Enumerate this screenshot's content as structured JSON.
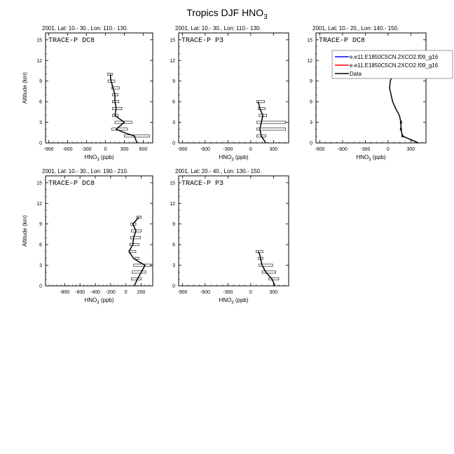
{
  "page": {
    "title_main": "Tropics DJF HNO",
    "title_sub": "3"
  },
  "legend": {
    "entries": [
      {
        "label": "e.e11.E1850C5CN.2XCO2.f09_g16",
        "color": "#0000ff"
      },
      {
        "label": "e.e11.E1850C5CN.2XCO2.f09_g16",
        "color": "#ff0000"
      },
      {
        "label": "Data",
        "color": "#000000"
      }
    ]
  },
  "chart_data": [
    {
      "type": "line",
      "header": "2001, Lat: 10.- 30., Lon: 110.- 130.",
      "label": "TRACE-P DC8",
      "xlabel": "HNO",
      "xlabel_sub": "3",
      "xlabel_unit": " (ppb)",
      "ylabel": "Altitude (km)",
      "xlim": [
        -950,
        750
      ],
      "ylim": [
        0,
        16
      ],
      "xticks": [
        -900,
        -600,
        -300,
        0,
        300,
        600
      ],
      "yticks": [
        0,
        3,
        6,
        9,
        12,
        15
      ],
      "series": [
        {
          "color": "#000000",
          "x": [
            500,
            460,
            300,
            170,
            300,
            150,
            170,
            150,
            150,
            120,
            90,
            80,
            80
          ],
          "y": [
            0,
            1,
            1.5,
            2,
            3,
            4,
            5,
            6,
            7,
            8,
            9,
            9.5,
            10
          ]
        }
      ],
      "boxes": [
        {
          "y": 1,
          "lo": 300,
          "hi": 700
        },
        {
          "y": 2,
          "lo": 100,
          "hi": 350
        },
        {
          "y": 3,
          "lo": 150,
          "hi": 420
        },
        {
          "y": 4,
          "lo": 110,
          "hi": 200
        },
        {
          "y": 5,
          "lo": 110,
          "hi": 260
        },
        {
          "y": 6,
          "lo": 110,
          "hi": 210
        },
        {
          "y": 7,
          "lo": 110,
          "hi": 200
        },
        {
          "y": 8,
          "lo": 100,
          "hi": 220
        },
        {
          "y": 9,
          "lo": 40,
          "hi": 150
        },
        {
          "y": 10,
          "lo": 30,
          "hi": 110
        }
      ]
    },
    {
      "type": "line",
      "header": "2001, Lat: 10.- 30., Lon: 110.- 130.",
      "label": "TRACE-P P3",
      "xlabel": "HNO",
      "xlabel_sub": "3",
      "xlabel_unit": " (ppb)",
      "ylabel": "",
      "xlim": [
        -950,
        500
      ],
      "ylim": [
        0,
        16
      ],
      "xticks": [
        -900,
        -600,
        -300,
        0,
        300
      ],
      "yticks": [
        0,
        3,
        6,
        9,
        12,
        15
      ],
      "series": [
        {
          "color": "#000000",
          "x": [
            200,
            140,
            120,
            140,
            160,
            140,
            120,
            100
          ],
          "y": [
            0,
            1,
            2,
            3,
            4,
            4.5,
            5,
            6
          ]
        }
      ],
      "boxes": [
        {
          "y": 1,
          "lo": 80,
          "hi": 200
        },
        {
          "y": 2,
          "lo": 80,
          "hi": 460
        },
        {
          "y": 3,
          "lo": 80,
          "hi": 460
        },
        {
          "y": 4,
          "lo": 110,
          "hi": 210
        },
        {
          "y": 5,
          "lo": 100,
          "hi": 190
        },
        {
          "y": 6,
          "lo": 80,
          "hi": 180
        }
      ]
    },
    {
      "type": "line",
      "header": "2001, Lat: 10.- 20., Lon: 140.- 150.",
      "label": "TRACE-P DC8",
      "xlabel": "HNO",
      "xlabel_sub": "3",
      "xlabel_unit": " (ppb)",
      "ylabel": "",
      "xlim": [
        -950,
        500
      ],
      "ylim": [
        0,
        16
      ],
      "xticks": [
        -900,
        -600,
        -300,
        0,
        300
      ],
      "yticks": [
        0,
        3,
        6,
        9,
        12,
        15
      ],
      "series": [
        {
          "color": "#000000",
          "x": [
            400,
            190,
            170,
            170,
            150,
            100,
            60,
            20,
            30,
            60
          ],
          "y": [
            0,
            1,
            2,
            3,
            4,
            5,
            6,
            8,
            9,
            10
          ]
        }
      ],
      "boxes": [
        {
          "y": 1,
          "lo": 180,
          "hi": 200
        },
        {
          "y": 2,
          "lo": 160,
          "hi": 180
        },
        {
          "y": 3,
          "lo": 160,
          "hi": 180
        }
      ]
    },
    {
      "type": "line",
      "header": "2001, Lat: 10.- 30., Lon: 190.- 210.",
      "label": "TRACE-P DC8",
      "xlabel": "HNO",
      "xlabel_sub": "3",
      "xlabel_unit": " (ppb)",
      "ylabel": "Altitude (km)",
      "xlim": [
        -1050,
        350
      ],
      "ylim": [
        0,
        16
      ],
      "xticks": [
        -800,
        -600,
        -400,
        -200,
        0,
        200
      ],
      "yticks": [
        0,
        3,
        6,
        9,
        12,
        15
      ],
      "series": [
        {
          "color": "#000000",
          "x": [
            110,
            150,
            200,
            250,
            170,
            100,
            40,
            90,
            100,
            130,
            90,
            170
          ],
          "y": [
            0,
            1,
            2,
            3,
            3.5,
            4,
            5,
            6,
            7,
            8,
            9,
            10
          ]
        }
      ],
      "boxes": [
        {
          "y": 1,
          "lo": 70,
          "hi": 200
        },
        {
          "y": 2,
          "lo": 80,
          "hi": 260
        },
        {
          "y": 3,
          "lo": 100,
          "hi": 330
        },
        {
          "y": 4,
          "lo": 120,
          "hi": 170
        },
        {
          "y": 5,
          "lo": 40,
          "hi": 130
        },
        {
          "y": 6,
          "lo": 50,
          "hi": 170
        },
        {
          "y": 7,
          "lo": 60,
          "hi": 190
        },
        {
          "y": 8,
          "lo": 70,
          "hi": 200
        },
        {
          "y": 9,
          "lo": 60,
          "hi": 130
        },
        {
          "y": 10,
          "lo": 140,
          "hi": 200
        }
      ]
    },
    {
      "type": "line",
      "header": "2001, Lat: 20.- 40., Lon: 130.- 150.",
      "label": "TRACE-P P3",
      "xlabel": "HNO",
      "xlabel_sub": "3",
      "xlabel_unit": " (ppb)",
      "ylabel": "",
      "xlim": [
        -950,
        500
      ],
      "ylim": [
        0,
        16
      ],
      "xticks": [
        -900,
        -600,
        -300,
        0,
        300
      ],
      "yticks": [
        0,
        3,
        6,
        9,
        12,
        15
      ],
      "series": [
        {
          "color": "#000000",
          "x": [
            320,
            280,
            200,
            150,
            130,
            120,
            100
          ],
          "y": [
            0,
            1,
            2,
            3,
            4,
            4.5,
            5
          ]
        }
      ],
      "boxes": [
        {
          "y": 1,
          "lo": 240,
          "hi": 370
        },
        {
          "y": 2,
          "lo": 150,
          "hi": 330
        },
        {
          "y": 3,
          "lo": 110,
          "hi": 290
        },
        {
          "y": 4,
          "lo": 100,
          "hi": 160
        },
        {
          "y": 5,
          "lo": 70,
          "hi": 160
        }
      ]
    }
  ]
}
